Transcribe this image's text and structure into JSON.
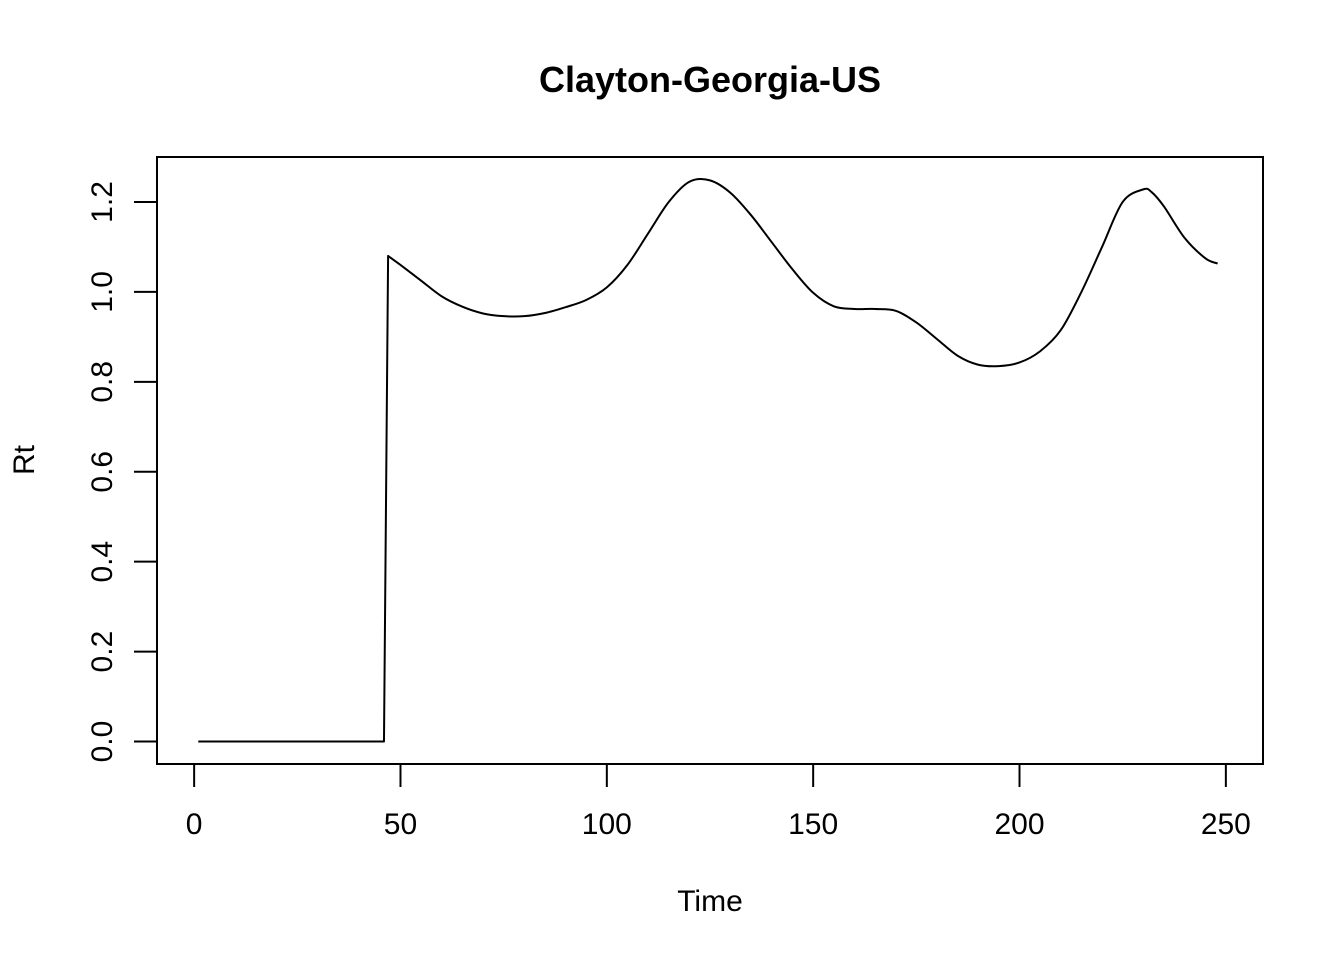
{
  "chart_data": {
    "type": "line",
    "title": "Clayton-Georgia-US",
    "xlabel": "Time",
    "ylabel": "Rt",
    "xlim": [
      -9,
      259
    ],
    "ylim": [
      -0.05,
      1.3
    ],
    "x_ticks": [
      0,
      50,
      100,
      150,
      200,
      250
    ],
    "y_ticks": [
      0.0,
      0.2,
      0.4,
      0.6,
      0.8,
      1.0,
      1.2
    ],
    "x_tick_labels": [
      "0",
      "50",
      "100",
      "150",
      "200",
      "250"
    ],
    "y_tick_labels": [
      "0.0",
      "0.2",
      "0.4",
      "0.6",
      "0.8",
      "1.0",
      "1.2"
    ],
    "grid": false,
    "legend": "none",
    "series": [
      {
        "name": "Rt",
        "x": [
          1,
          10,
          20,
          30,
          40,
          46,
          47,
          50,
          55,
          60,
          65,
          70,
          75,
          80,
          85,
          90,
          95,
          100,
          105,
          110,
          115,
          120,
          125,
          130,
          135,
          140,
          145,
          150,
          155,
          160,
          165,
          170,
          175,
          180,
          185,
          190,
          195,
          200,
          205,
          210,
          215,
          220,
          225,
          230,
          232,
          235,
          240,
          245,
          248
        ],
        "values": [
          0.0,
          0.0,
          0.0,
          0.0,
          0.0,
          0.0,
          1.08,
          1.06,
          1.025,
          0.99,
          0.967,
          0.952,
          0.946,
          0.946,
          0.953,
          0.966,
          0.982,
          1.01,
          1.06,
          1.13,
          1.2,
          1.245,
          1.248,
          1.22,
          1.17,
          1.11,
          1.05,
          0.998,
          0.968,
          0.962,
          0.962,
          0.958,
          0.932,
          0.895,
          0.858,
          0.838,
          0.835,
          0.843,
          0.868,
          0.915,
          1.0,
          1.1,
          1.2,
          1.228,
          1.222,
          1.19,
          1.12,
          1.075,
          1.063
        ]
      }
    ]
  }
}
